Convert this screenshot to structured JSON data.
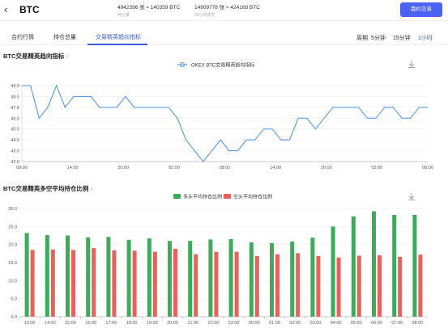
{
  "header": {
    "title": "BTC",
    "stats": [
      {
        "value": "4942396 张 ≈ 140359 BTC",
        "label": "持仓量"
      },
      {
        "value": "14909778 张 ≈ 424168 BTC",
        "label": "24小时成交"
      }
    ],
    "trade_button": "我约交易"
  },
  "tabs": [
    {
      "label": "合约行情"
    },
    {
      "label": "持仓总量"
    },
    {
      "label": "交易精英趋向指标"
    }
  ],
  "period_label": "周期",
  "periods": [
    "5分钟",
    "15分钟",
    "1小时"
  ],
  "chart1": {
    "section_title": "BTC交易精英趋向指标",
    "info_icon": "info-icon",
    "legend": "OKEX BTC交易精英趋向指标",
    "color": "#4a8ee6"
  },
  "chart2": {
    "section_title": "BTC交易精英多空平均持仓比例",
    "info_icon": "info-icon",
    "legend": [
      "多头平均持仓比例",
      "空头平均持仓比例"
    ],
    "colors": {
      "long": "#3daa5c",
      "short": "#e8615b"
    }
  },
  "chart_data": [
    {
      "type": "line",
      "title": "BTC交易精英趋向指标",
      "ylim": [
        42.0,
        49.0
      ],
      "yticks": [
        "49.0",
        "48.0",
        "47.0",
        "46.0",
        "45.0",
        "44.0",
        "43.0",
        "42.0"
      ],
      "xticks": [
        "09:00",
        "14:00",
        "20:00",
        "02:00",
        "08:00",
        "14:00",
        "20:00",
        "02:00",
        "08:00"
      ],
      "series": [
        {
          "name": "OKEX BTC交易精英趋向指标",
          "values": [
            49,
            49,
            46,
            47,
            49,
            47,
            48,
            48,
            48,
            47,
            47,
            47,
            48,
            47,
            47,
            47,
            47,
            47,
            46,
            44,
            43,
            42,
            43,
            44,
            43,
            43,
            44,
            44,
            45,
            45,
            44,
            44,
            46,
            46,
            45,
            46,
            47,
            47,
            47,
            47,
            46,
            46,
            47,
            47,
            46,
            46,
            47,
            47
          ]
        }
      ]
    },
    {
      "type": "bar",
      "title": "BTC交易精英多空平均持仓比例",
      "ylim": [
        0,
        30
      ],
      "yticks": [
        "30.0",
        "25.0",
        "20.0",
        "15.0",
        "10.0",
        "5.0",
        "0.0"
      ],
      "categories": [
        "13:00",
        "14:00",
        "15:00",
        "16:00",
        "17:00",
        "18:00",
        "19:00",
        "20:00",
        "21:00",
        "22:00",
        "23:00",
        "00:00",
        "01:00",
        "02:00",
        "03:00",
        "04:00",
        "05:00",
        "06:00",
        "07:00",
        "08:00"
      ],
      "series": [
        {
          "name": "多头平均持仓比例",
          "values": [
            23.2,
            22.6,
            22.5,
            22.0,
            22.1,
            21.3,
            21.7,
            21.0,
            21.0,
            21.4,
            21.5,
            20.6,
            20.4,
            20.8,
            21.9,
            25.0,
            27.8,
            29.2,
            28.2,
            28.2
          ]
        },
        {
          "name": "空头平均持仓比例",
          "values": [
            18.5,
            18.6,
            18.5,
            19.0,
            18.4,
            18.3,
            18.0,
            18.8,
            17.3,
            18.0,
            18.0,
            16.8,
            17.3,
            17.6,
            16.8,
            16.4,
            16.9,
            17.0,
            16.6,
            17.2
          ]
        }
      ]
    }
  ]
}
